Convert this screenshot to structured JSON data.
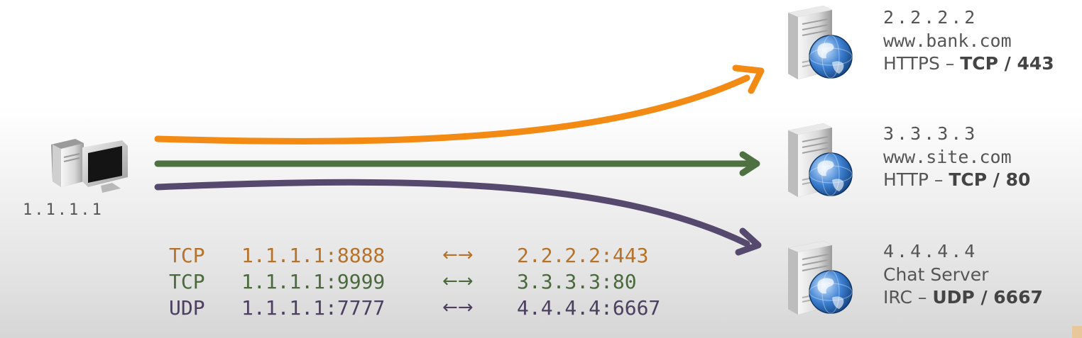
{
  "client": {
    "ip": "1.1.1.1",
    "icon": "desktop-computer-icon"
  },
  "servers": [
    {
      "ip": "2.2.2.2",
      "host": "www.bank.com",
      "host_mono": true,
      "service_prefix": "HTTPS – ",
      "service_bold": "TCP / 443",
      "icon": "web-server-globe-icon"
    },
    {
      "ip": "3.3.3.3",
      "host": "www.site.com",
      "host_mono": true,
      "service_prefix": "HTTP – ",
      "service_bold": "TCP / 80",
      "icon": "web-server-globe-icon"
    },
    {
      "ip": "4.4.4.4",
      "host": "Chat Server",
      "host_mono": false,
      "service_prefix": "IRC – ",
      "service_bold": "UDP / 6667",
      "icon": "web-server-globe-icon"
    }
  ],
  "connections": [
    {
      "proto": "TCP",
      "src": "1.1.1.1:8888",
      "arrow": "←→",
      "dst": "2.2.2.2:443",
      "color": "#b5722a"
    },
    {
      "proto": "TCP",
      "src": "1.1.1.1:9999",
      "arrow": "←→",
      "dst": "3.3.3.3:80",
      "color": "#4a6a3c"
    },
    {
      "proto": "UDP",
      "src": "1.1.1.1:7777",
      "arrow": "←→",
      "dst": "4.4.4.4:6667",
      "color": "#4b4060"
    }
  ],
  "flow_colors": [
    "#f28a14",
    "#4f7040",
    "#56496e"
  ]
}
